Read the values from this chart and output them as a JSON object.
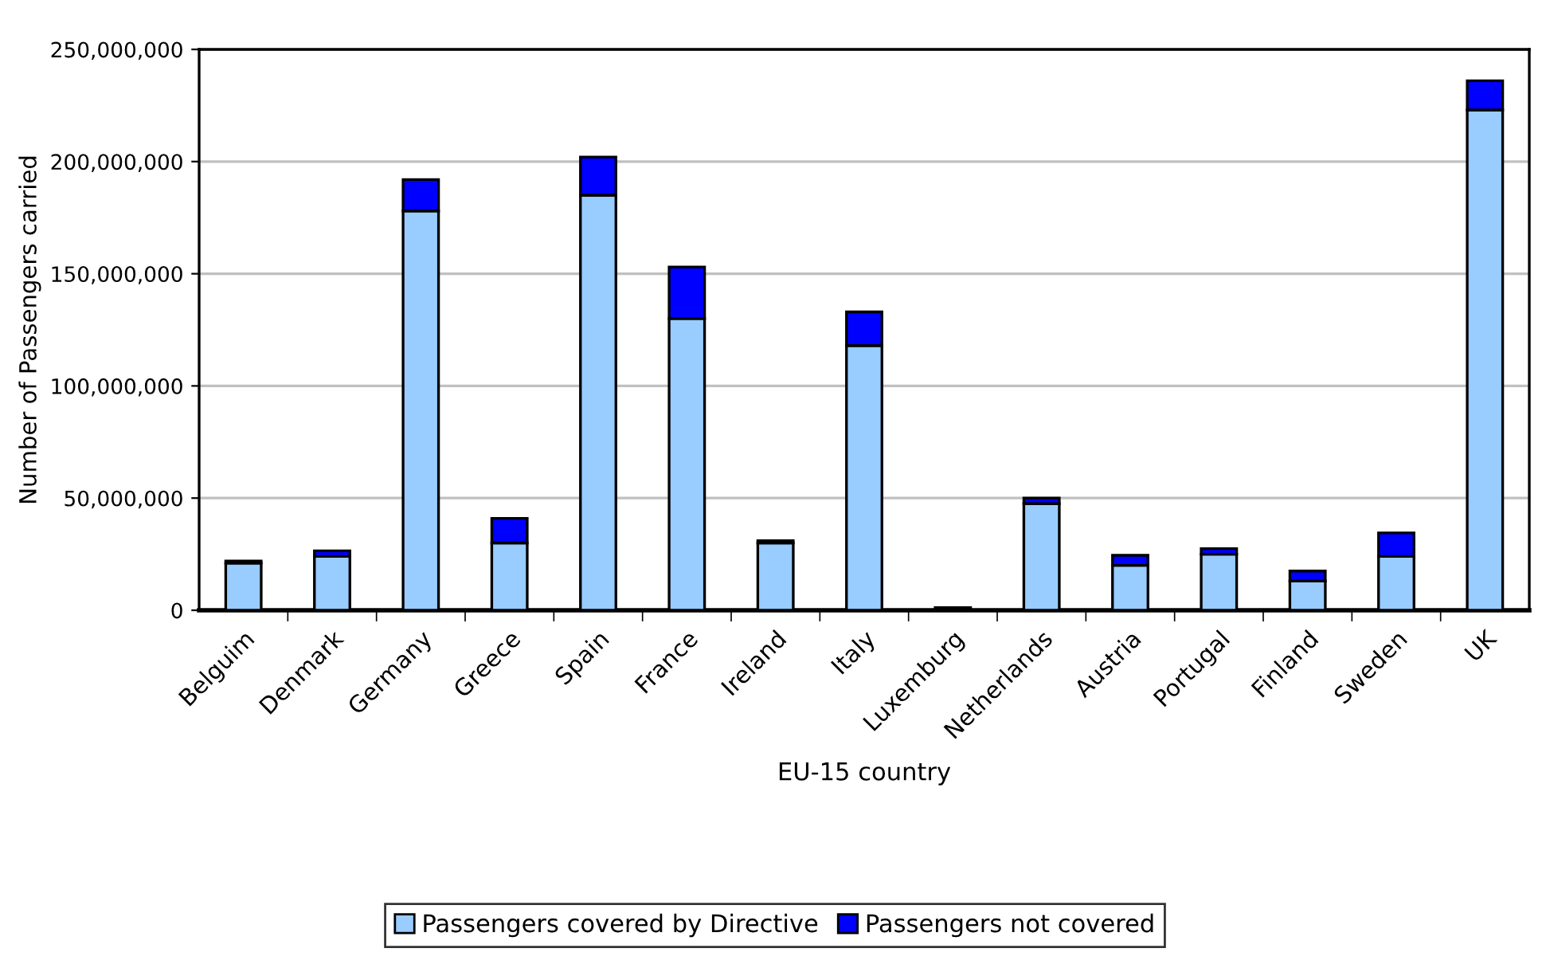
{
  "chart_data": {
    "type": "bar",
    "stacked": true,
    "xlabel": "EU-15 country",
    "ylabel": "Number of Passengers carried",
    "categories": [
      "Belguim",
      "Denmark",
      "Germany",
      "Greece",
      "Spain",
      "France",
      "Ireland",
      "Italy",
      "Luxemburg",
      "Netherlands",
      "Austria",
      "Portugal",
      "Finland",
      "Sweden",
      "UK"
    ],
    "series": [
      {
        "name": "Passengers covered by Directive",
        "color": "#99ccff",
        "values": [
          21000000,
          24000000,
          178000000,
          30000000,
          185000000,
          130000000,
          30000000,
          118000000,
          null,
          47500000,
          20000000,
          25000000,
          13000000,
          24000000,
          223000000
        ]
      },
      {
        "name": "Passengers not covered",
        "color": "#0000ff",
        "values": [
          1000000,
          2500000,
          14000000,
          11000000,
          17000000,
          23000000,
          1000000,
          15000000,
          1200000,
          2500000,
          4500000,
          2500000,
          4500000,
          10500000,
          13000000
        ]
      }
    ],
    "ylim": [
      0,
      250000000
    ],
    "yticks": [
      {
        "value": 0,
        "label": "0"
      },
      {
        "value": 50000000,
        "label": "50,000,000"
      },
      {
        "value": 100000000,
        "label": "100,000,000"
      },
      {
        "value": 150000000,
        "label": "150,000,000"
      },
      {
        "value": 200000000,
        "label": "200,000,000"
      },
      {
        "value": 250000000,
        "label": "250,000,000"
      }
    ],
    "grid": "y",
    "legend": "bottom"
  }
}
